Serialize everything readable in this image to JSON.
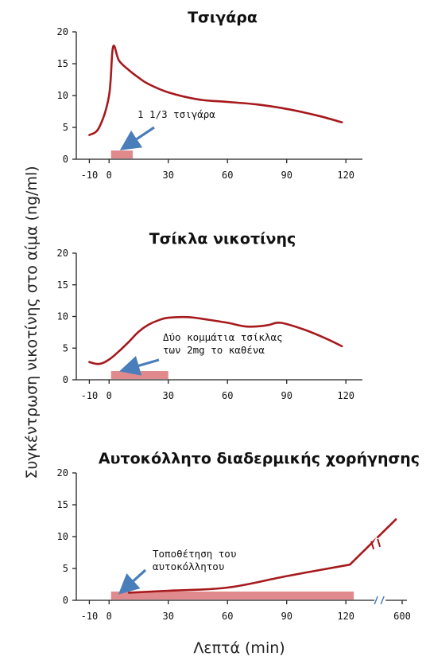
{
  "figure": {
    "ylabel": "Συγκέντρωση νικοτίνης στο αίμα (ng/ml)",
    "xlabel": "Λεπτά (min)"
  },
  "colors": {
    "curve": "#a6191c",
    "bar": "#e08a8e",
    "arrow": "#4a7ebb",
    "axis": "#222222"
  },
  "chart_data": [
    {
      "type": "line",
      "title": "Τσιγάρα",
      "ylim": [
        0,
        20
      ],
      "yticks": [
        0,
        5,
        10,
        15,
        20
      ],
      "xlim": [
        -15,
        130
      ],
      "xticks": [
        -10,
        0,
        30,
        60,
        90,
        120
      ],
      "xtick_labels": [
        "-10",
        "0",
        "30",
        "60",
        "90",
        "120"
      ],
      "series": [
        {
          "x": [
            -10,
            -5,
            0,
            2,
            5,
            10,
            15,
            20,
            30,
            45,
            60,
            75,
            90,
            105,
            118
          ],
          "y": [
            3.8,
            5,
            10,
            17.6,
            15.5,
            14,
            12.8,
            11.8,
            10.5,
            9.4,
            9,
            8.6,
            7.9,
            6.9,
            5.8
          ]
        }
      ],
      "dosing_bar": {
        "start": 1,
        "end": 12
      },
      "annotation": {
        "text": "1 1/3 τσιγάρα",
        "at": [
          6,
          1.6
        ]
      }
    },
    {
      "type": "line",
      "title": "Τσίκλα νικοτίνης",
      "ylim": [
        0,
        20
      ],
      "yticks": [
        0,
        5,
        10,
        15,
        20
      ],
      "xlim": [
        -15,
        130
      ],
      "xticks": [
        -10,
        0,
        30,
        60,
        90,
        120
      ],
      "xtick_labels": [
        "-10",
        "0",
        "30",
        "60",
        "90",
        "120"
      ],
      "series": [
        {
          "x": [
            -10,
            -5,
            0,
            5,
            10,
            15,
            20,
            25,
            30,
            40,
            50,
            60,
            70,
            80,
            85,
            90,
            100,
            110,
            118
          ],
          "y": [
            2.8,
            2.5,
            3.2,
            4.5,
            6,
            7.6,
            8.7,
            9.4,
            9.8,
            9.9,
            9.5,
            9,
            8.4,
            8.6,
            9,
            8.8,
            7.8,
            6.5,
            5.3
          ]
        }
      ],
      "dosing_bar": {
        "start": 1,
        "end": 30
      },
      "annotation": {
        "lines": [
          "Δύο κομμάτια τσίκλας",
          "των 2mg το καθένα"
        ],
        "at": [
          6,
          1.3
        ]
      }
    },
    {
      "type": "line",
      "title": "Αυτοκόλλητο διαδερμικής χορήγησης",
      "ylim": [
        0,
        20
      ],
      "yticks": [
        0,
        5,
        10,
        15,
        20
      ],
      "xlim": [
        -15,
        150
      ],
      "xticks": [
        -10,
        0,
        30,
        60,
        90,
        120,
        600
      ],
      "xtick_labels": [
        "-10",
        "0",
        "30",
        "60",
        "90",
        "120",
        "600"
      ],
      "x_axis_break": true,
      "series": [
        {
          "x": [
            10,
            30,
            60,
            90,
            122,
            130,
            147
          ],
          "y": [
            1.2,
            1.5,
            2,
            3.8,
            5.6,
            8,
            12.7
          ]
        }
      ],
      "dosing_bar": {
        "start": 1,
        "end": 124
      },
      "annotation": {
        "lines": [
          "Τοποθέτηση του",
          "αυτοκόλλητου"
        ],
        "at": [
          5,
          1.2
        ]
      }
    }
  ]
}
